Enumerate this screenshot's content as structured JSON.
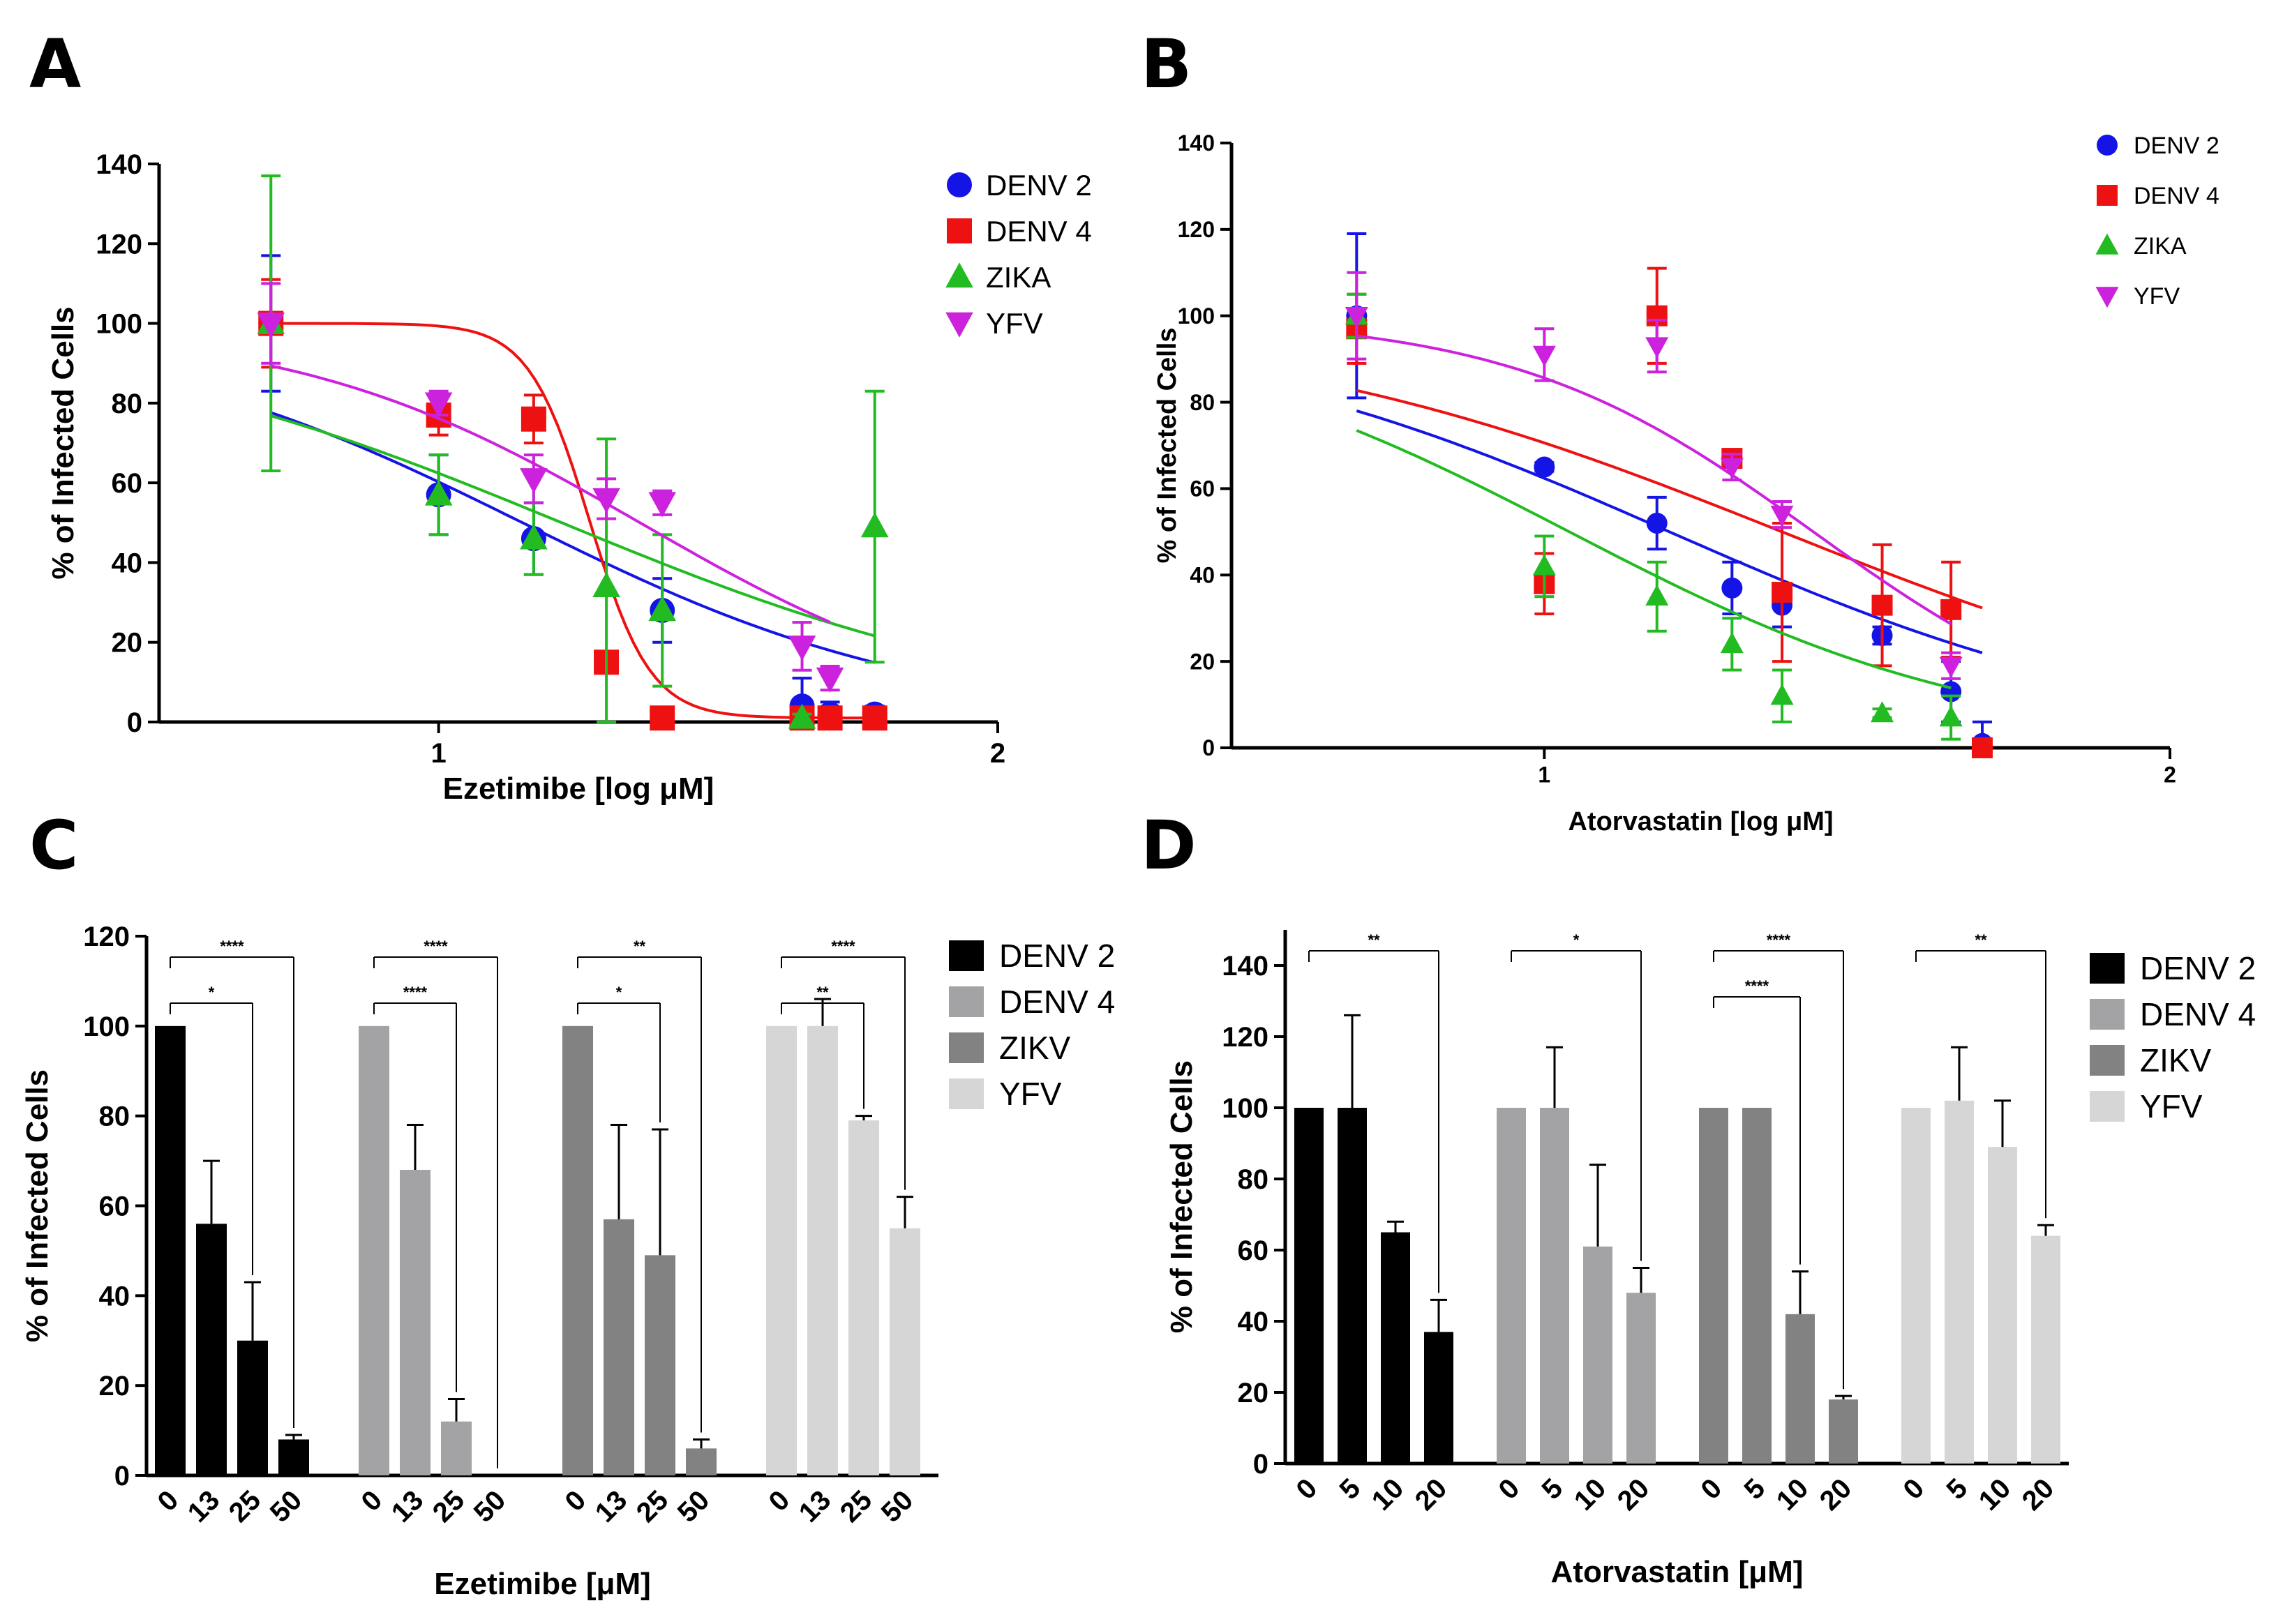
{
  "panels": [
    {
      "id": "A",
      "letter": "A"
    },
    {
      "id": "B",
      "letter": "B"
    },
    {
      "id": "C",
      "letter": "C"
    },
    {
      "id": "D",
      "letter": "D"
    }
  ],
  "chart_data": [
    {
      "id": "A",
      "type": "scatter",
      "xlabel": "Ezetimibe [log μM]",
      "ylabel": "% of Infected Cells",
      "xlim": [
        0.5,
        2.0
      ],
      "ylim": [
        0,
        140
      ],
      "xticks": [
        "1",
        "2"
      ],
      "yticks": [
        "0",
        "20",
        "40",
        "60",
        "80",
        "100",
        "120",
        "140"
      ],
      "legend_position": "top-right",
      "series": [
        {
          "name": "DENV 2",
          "color": "#1414e6",
          "marker": "circle",
          "x": [
            0.7,
            1.0,
            1.17,
            1.4,
            1.65,
            1.7,
            1.78
          ],
          "y": [
            100,
            57,
            46,
            28,
            4,
            2,
            2
          ],
          "err": [
            17,
            10,
            9,
            8,
            7,
            3,
            2
          ],
          "curve": {
            "top": 100,
            "bottom": 0,
            "logIC50": 1.15,
            "hill": 1.2
          }
        },
        {
          "name": "DENV 4",
          "color": "#ee1111",
          "marker": "square",
          "x": [
            0.7,
            1.0,
            1.17,
            1.3,
            1.4,
            1.65,
            1.7,
            1.78
          ],
          "y": [
            100,
            77,
            76,
            15,
            1,
            1,
            1,
            1
          ],
          "err": [
            11,
            5,
            6,
            2,
            1,
            1,
            1,
            1
          ],
          "curve": {
            "top": 100,
            "bottom": 1,
            "logIC50": 1.27,
            "hill": 8
          }
        },
        {
          "name": "ZIKA",
          "color": "#22bb22",
          "marker": "triangle-up",
          "x": [
            0.7,
            1.0,
            1.17,
            1.3,
            1.4,
            1.65,
            1.78
          ],
          "y": [
            100,
            57,
            46,
            34,
            28,
            1,
            49
          ],
          "err": [
            37,
            10,
            9,
            37,
            19,
            1,
            34
          ],
          "curve": {
            "top": 100,
            "bottom": 0,
            "logIC50": 1.22,
            "hill": 1.0
          }
        },
        {
          "name": "YFV",
          "color": "#cc22dd",
          "marker": "triangle-down",
          "x": [
            0.7,
            1.0,
            1.17,
            1.3,
            1.4,
            1.65,
            1.7
          ],
          "y": [
            100,
            80,
            61,
            56,
            55,
            19,
            11
          ],
          "err": [
            10,
            3,
            6,
            5,
            3,
            6,
            3
          ],
          "curve": {
            "top": 100,
            "bottom": 0,
            "logIC50": 1.36,
            "hill": 1.4
          }
        }
      ]
    },
    {
      "id": "B",
      "type": "scatter",
      "xlabel": "Atorvastatin [log μM]",
      "ylabel": "% of Infected Cells",
      "xlim": [
        0.5,
        2.0
      ],
      "ylim": [
        0,
        140
      ],
      "xticks": [
        "1",
        "2"
      ],
      "yticks": [
        "0",
        "20",
        "40",
        "60",
        "80",
        "100",
        "120",
        "140"
      ],
      "legend_position": "top-right",
      "series": [
        {
          "name": "DENV 2",
          "color": "#1414e6",
          "marker": "circle",
          "x": [
            0.7,
            1.0,
            1.18,
            1.3,
            1.38,
            1.54,
            1.65,
            1.7
          ],
          "y": [
            100,
            65,
            52,
            37,
            33,
            26,
            13,
            1
          ],
          "err": [
            19,
            1,
            6,
            6,
            5,
            2,
            7,
            5
          ],
          "curve": {
            "top": 100,
            "bottom": 0,
            "logIC50": 1.2,
            "hill": 1.1
          }
        },
        {
          "name": "DENV 4",
          "color": "#ee1111",
          "marker": "square",
          "x": [
            0.7,
            1.0,
            1.18,
            1.3,
            1.38,
            1.54,
            1.65,
            1.7
          ],
          "y": [
            97,
            38,
            100,
            67,
            36,
            33,
            32,
            0
          ],
          "err": [
            8,
            7,
            11,
            2,
            16,
            14,
            11,
            1
          ],
          "curve": {
            "top": 100,
            "bottom": 0,
            "logIC50": 1.38,
            "hill": 1.0
          }
        },
        {
          "name": "ZIKA",
          "color": "#22bb22",
          "marker": "triangle-up",
          "x": [
            0.7,
            1.0,
            1.18,
            1.3,
            1.38,
            1.54,
            1.65
          ],
          "y": [
            100,
            42,
            35,
            24,
            12,
            8,
            7
          ],
          "err": [
            5,
            7,
            8,
            6,
            6,
            1,
            5
          ],
          "curve": {
            "top": 100,
            "bottom": 0,
            "logIC50": 1.04,
            "hill": 1.3
          }
        },
        {
          "name": "YFV",
          "color": "#cc22dd",
          "marker": "triangle-down",
          "x": [
            0.7,
            1.0,
            1.18,
            1.3,
            1.38,
            1.65
          ],
          "y": [
            100,
            91,
            93,
            65,
            54,
            19
          ],
          "err": [
            10,
            6,
            6,
            3,
            3,
            3
          ],
          "curve": {
            "top": 100,
            "bottom": 0,
            "logIC50": 1.43,
            "hill": 1.8
          }
        }
      ]
    },
    {
      "id": "C",
      "type": "bar",
      "xlabel": "Ezetimibe [μM]",
      "ylabel": "% of Infected Cells",
      "ylim": [
        0,
        120
      ],
      "yticks": [
        "0",
        "20",
        "40",
        "60",
        "80",
        "100",
        "120"
      ],
      "legend_position": "top-right",
      "series": [
        {
          "name": "DENV 2",
          "color": "#000000",
          "categories": [
            "0",
            "13",
            "25",
            "50"
          ],
          "values": [
            100,
            56,
            30,
            8
          ],
          "err": [
            0,
            14,
            13,
            1
          ]
        },
        {
          "name": "DENV 4",
          "color": "#a3a3a6",
          "categories": [
            "0",
            "13",
            "25",
            "50"
          ],
          "values": [
            100,
            68,
            12,
            0
          ],
          "err": [
            0,
            10,
            5,
            0
          ]
        },
        {
          "name": "ZIKV",
          "color": "#828282",
          "categories": [
            "0",
            "13",
            "25",
            "50"
          ],
          "values": [
            100,
            57,
            49,
            6
          ],
          "err": [
            0,
            21,
            28,
            2
          ]
        },
        {
          "name": "YFV",
          "color": "#d6d6d6",
          "categories": [
            "0",
            "13",
            "25",
            "50"
          ],
          "values": [
            100,
            100,
            79,
            55
          ],
          "err": [
            0,
            6,
            1,
            7
          ]
        }
      ],
      "significance": [
        {
          "group": 0,
          "from": 0,
          "to": 2,
          "label": "*"
        },
        {
          "group": 0,
          "from": 0,
          "to": 3,
          "label": "****"
        },
        {
          "group": 1,
          "from": 0,
          "to": 2,
          "label": "****"
        },
        {
          "group": 1,
          "from": 0,
          "to": 3,
          "label": "****"
        },
        {
          "group": 2,
          "from": 0,
          "to": 2,
          "label": "*"
        },
        {
          "group": 2,
          "from": 0,
          "to": 3,
          "label": "**"
        },
        {
          "group": 3,
          "from": 0,
          "to": 2,
          "label": "**"
        },
        {
          "group": 3,
          "from": 0,
          "to": 3,
          "label": "****"
        }
      ]
    },
    {
      "id": "D",
      "type": "bar",
      "xlabel": "Atorvastatin [μM]",
      "ylabel": "% of Infected Cells",
      "ylim": [
        0,
        150
      ],
      "yticks": [
        "0",
        "20",
        "40",
        "60",
        "80",
        "100",
        "120",
        "140"
      ],
      "legend_position": "top-right",
      "series": [
        {
          "name": "DENV 2",
          "color": "#000000",
          "categories": [
            "0",
            "5",
            "10",
            "20"
          ],
          "values": [
            100,
            100,
            65,
            37
          ],
          "err": [
            0,
            26,
            3,
            9
          ]
        },
        {
          "name": "DENV 4",
          "color": "#a3a3a6",
          "categories": [
            "0",
            "5",
            "10",
            "20"
          ],
          "values": [
            100,
            100,
            61,
            48
          ],
          "err": [
            0,
            17,
            23,
            7
          ]
        },
        {
          "name": "ZIKV",
          "color": "#828282",
          "categories": [
            "0",
            "5",
            "10",
            "20"
          ],
          "values": [
            100,
            100,
            42,
            18
          ],
          "err": [
            0,
            0,
            12,
            1
          ]
        },
        {
          "name": "YFV",
          "color": "#d6d6d6",
          "categories": [
            "0",
            "5",
            "10",
            "20"
          ],
          "values": [
            100,
            102,
            89,
            64
          ],
          "err": [
            0,
            15,
            13,
            3
          ]
        }
      ],
      "significance": [
        {
          "group": 0,
          "from": 0,
          "to": 3,
          "label": "**"
        },
        {
          "group": 1,
          "from": 0,
          "to": 3,
          "label": "*"
        },
        {
          "group": 2,
          "from": 0,
          "to": 2,
          "label": "****"
        },
        {
          "group": 2,
          "from": 0,
          "to": 3,
          "label": "****"
        },
        {
          "group": 3,
          "from": 0,
          "to": 3,
          "label": "**"
        }
      ]
    }
  ]
}
